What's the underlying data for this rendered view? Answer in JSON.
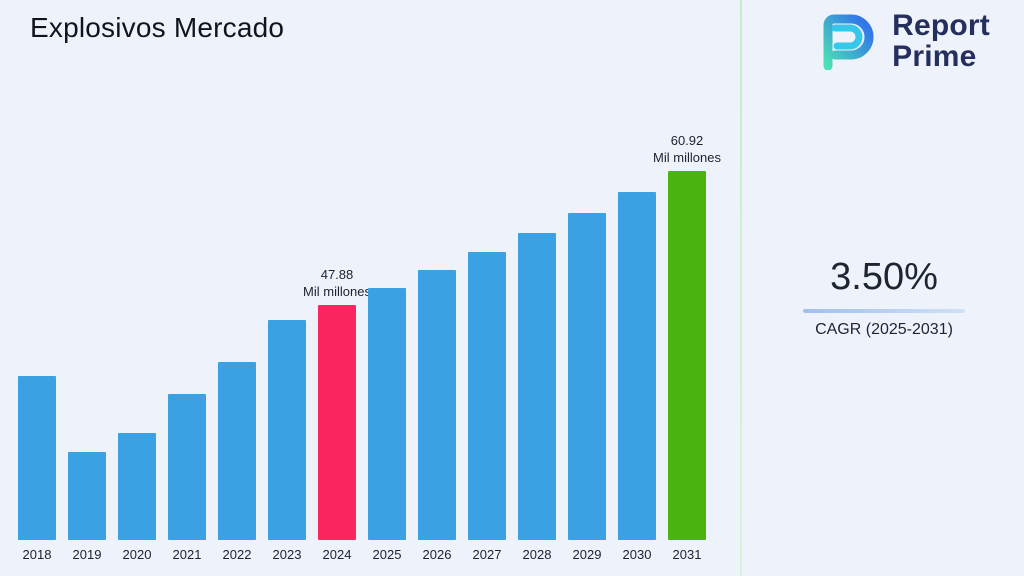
{
  "title": "Explosivos Mercado",
  "logo": {
    "line1": "Report",
    "line2": "Prime"
  },
  "stats": {
    "cagr_value": "3.50%",
    "cagr_label": "CAGR (2025-2031)"
  },
  "colors": {
    "background": "#eef2fa",
    "divider": "#c9edcd",
    "brand_navy": "#242f5e",
    "underline": "#a8c8ef",
    "bar_default": "#3aa2e3",
    "bar_highlight_2024": "#fb2560",
    "bar_highlight_2031": "#4cb411"
  },
  "chart_data": {
    "type": "bar",
    "title": "Explosivos Mercado",
    "xlabel": "",
    "ylabel": "",
    "unit": "Mil millones",
    "categories": [
      "2018",
      "2019",
      "2020",
      "2021",
      "2022",
      "2023",
      "2024",
      "2025",
      "2026",
      "2027",
      "2028",
      "2029",
      "2030",
      "2031"
    ],
    "values": [
      41.0,
      33.6,
      35.4,
      39.2,
      42.3,
      46.4,
      47.88,
      49.56,
      51.29,
      53.09,
      54.94,
      56.87,
      58.86,
      60.92
    ],
    "ylim": [
      25,
      62
    ],
    "grid": false,
    "legend": false,
    "bar_color": "#3aa2e3",
    "highlights": {
      "2024": "#fb2560",
      "2031": "#4cb411"
    },
    "annotations": [
      {
        "category": "2024",
        "lines": [
          "47.88",
          "Mil millones"
        ]
      },
      {
        "category": "2031",
        "lines": [
          "60.92",
          "Mil millones"
        ]
      }
    ]
  }
}
